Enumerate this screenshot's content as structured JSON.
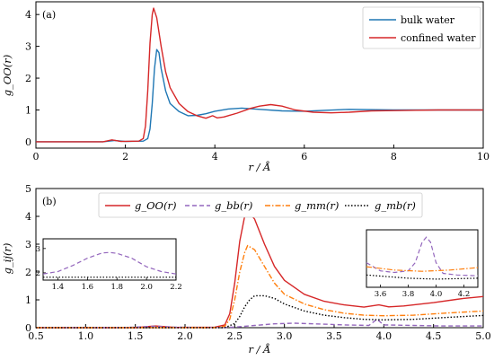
{
  "chart_data": [
    {
      "type": "line",
      "panel_label": "(a)",
      "xlabel": "r / Å",
      "ylabel": "g_OO(r)",
      "xlim": [
        0,
        10
      ],
      "ylim": [
        -0.2,
        4.4
      ],
      "xticks": [
        0,
        2,
        4,
        6,
        8,
        10
      ],
      "yticks": [
        0,
        1,
        2,
        3,
        4
      ],
      "legend_position": "top-right",
      "series": [
        {
          "name": "bulk water",
          "color": "#1f77b4",
          "style": "solid",
          "points": [
            [
              0,
              0
            ],
            [
              1.5,
              0.0
            ],
            [
              1.75,
              0.04
            ],
            [
              2.0,
              0.01
            ],
            [
              2.4,
              0.02
            ],
            [
              2.5,
              0.1
            ],
            [
              2.55,
              0.4
            ],
            [
              2.6,
              1.2
            ],
            [
              2.65,
              2.3
            ],
            [
              2.7,
              2.9
            ],
            [
              2.75,
              2.8
            ],
            [
              2.8,
              2.3
            ],
            [
              2.9,
              1.6
            ],
            [
              3.0,
              1.2
            ],
            [
              3.2,
              0.95
            ],
            [
              3.4,
              0.82
            ],
            [
              3.6,
              0.83
            ],
            [
              3.8,
              0.88
            ],
            [
              4.0,
              0.96
            ],
            [
              4.3,
              1.03
            ],
            [
              4.6,
              1.06
            ],
            [
              5.0,
              1.02
            ],
            [
              5.5,
              0.97
            ],
            [
              6.0,
              0.96
            ],
            [
              6.5,
              0.99
            ],
            [
              7.0,
              1.02
            ],
            [
              8.0,
              1.0
            ],
            [
              9.0,
              1.0
            ],
            [
              10.0,
              1.0
            ]
          ]
        },
        {
          "name": "confined water",
          "color": "#d62728",
          "style": "solid",
          "points": [
            [
              0,
              0
            ],
            [
              1.5,
              0.0
            ],
            [
              1.7,
              0.06
            ],
            [
              1.9,
              0.01
            ],
            [
              2.3,
              0.02
            ],
            [
              2.4,
              0.1
            ],
            [
              2.45,
              0.5
            ],
            [
              2.5,
              1.6
            ],
            [
              2.55,
              3.1
            ],
            [
              2.6,
              4.0
            ],
            [
              2.63,
              4.2
            ],
            [
              2.7,
              3.9
            ],
            [
              2.8,
              3.0
            ],
            [
              2.9,
              2.2
            ],
            [
              3.0,
              1.7
            ],
            [
              3.2,
              1.2
            ],
            [
              3.4,
              0.95
            ],
            [
              3.6,
              0.82
            ],
            [
              3.8,
              0.74
            ],
            [
              3.95,
              0.82
            ],
            [
              4.05,
              0.75
            ],
            [
              4.2,
              0.78
            ],
            [
              4.5,
              0.9
            ],
            [
              4.8,
              1.05
            ],
            [
              5.0,
              1.12
            ],
            [
              5.25,
              1.17
            ],
            [
              5.5,
              1.12
            ],
            [
              5.8,
              1.0
            ],
            [
              6.2,
              0.93
            ],
            [
              6.6,
              0.91
            ],
            [
              7.0,
              0.93
            ],
            [
              7.5,
              0.97
            ],
            [
              8.0,
              0.98
            ],
            [
              8.5,
              0.99
            ],
            [
              9.0,
              1.0
            ],
            [
              9.5,
              1.0
            ],
            [
              10.0,
              1.0
            ]
          ]
        }
      ]
    },
    {
      "type": "line",
      "panel_label": "(b)",
      "xlabel": "r / Å",
      "ylabel": "g_ij(r)",
      "xlim": [
        0.5,
        5.0
      ],
      "ylim": [
        0,
        5
      ],
      "xticks": [
        0.5,
        1.0,
        1.5,
        2.0,
        2.5,
        3.0,
        3.5,
        4.0,
        4.5,
        5.0
      ],
      "yticks": [
        0,
        1,
        2,
        3,
        4,
        5
      ],
      "legend_position": "top-center",
      "series": [
        {
          "name": "g_OO(r)",
          "color": "#d62728",
          "style": "solid",
          "points": [
            [
              0.5,
              0
            ],
            [
              1.5,
              0.0
            ],
            [
              1.7,
              0.06
            ],
            [
              1.9,
              0.01
            ],
            [
              2.3,
              0.02
            ],
            [
              2.4,
              0.1
            ],
            [
              2.45,
              0.5
            ],
            [
              2.5,
              1.6
            ],
            [
              2.55,
              3.1
            ],
            [
              2.6,
              4.0
            ],
            [
              2.63,
              4.2
            ],
            [
              2.7,
              3.9
            ],
            [
              2.8,
              3.0
            ],
            [
              2.9,
              2.2
            ],
            [
              3.0,
              1.7
            ],
            [
              3.2,
              1.2
            ],
            [
              3.4,
              0.95
            ],
            [
              3.6,
              0.82
            ],
            [
              3.8,
              0.74
            ],
            [
              3.95,
              0.82
            ],
            [
              4.05,
              0.75
            ],
            [
              4.2,
              0.78
            ],
            [
              4.5,
              0.9
            ],
            [
              4.8,
              1.05
            ],
            [
              5.0,
              1.12
            ]
          ]
        },
        {
          "name": "g_bb(r)",
          "color": "#9467bd",
          "style": "dashed",
          "points": [
            [
              0.5,
              0
            ],
            [
              1.3,
              0.0
            ],
            [
              1.5,
              0.02
            ],
            [
              1.7,
              0.05
            ],
            [
              1.9,
              0.02
            ],
            [
              2.2,
              0.0
            ],
            [
              2.5,
              0.02
            ],
            [
              2.7,
              0.08
            ],
            [
              2.9,
              0.14
            ],
            [
              3.1,
              0.16
            ],
            [
              3.3,
              0.14
            ],
            [
              3.6,
              0.1
            ],
            [
              3.85,
              0.08
            ],
            [
              3.93,
              0.3
            ],
            [
              4.0,
              0.1
            ],
            [
              4.3,
              0.08
            ],
            [
              4.6,
              0.06
            ],
            [
              5.0,
              0.06
            ]
          ]
        },
        {
          "name": "g_mm(r)",
          "color": "#ff7f0e",
          "style": "dashdot",
          "points": [
            [
              0.5,
              0
            ],
            [
              2.3,
              0.0
            ],
            [
              2.4,
              0.05
            ],
            [
              2.45,
              0.3
            ],
            [
              2.5,
              1.0
            ],
            [
              2.55,
              2.0
            ],
            [
              2.6,
              2.7
            ],
            [
              2.63,
              2.95
            ],
            [
              2.7,
              2.8
            ],
            [
              2.8,
              2.2
            ],
            [
              2.9,
              1.6
            ],
            [
              3.0,
              1.2
            ],
            [
              3.2,
              0.85
            ],
            [
              3.4,
              0.65
            ],
            [
              3.6,
              0.52
            ],
            [
              3.8,
              0.45
            ],
            [
              4.0,
              0.43
            ],
            [
              4.3,
              0.45
            ],
            [
              4.6,
              0.52
            ],
            [
              5.0,
              0.6
            ]
          ]
        },
        {
          "name": "g_mb(r)",
          "color": "#000000",
          "style": "dotted",
          "points": [
            [
              0.5,
              0
            ],
            [
              2.4,
              0.0
            ],
            [
              2.5,
              0.15
            ],
            [
              2.55,
              0.4
            ],
            [
              2.6,
              0.75
            ],
            [
              2.65,
              1.0
            ],
            [
              2.7,
              1.15
            ],
            [
              2.8,
              1.15
            ],
            [
              2.9,
              1.05
            ],
            [
              3.0,
              0.85
            ],
            [
              3.2,
              0.6
            ],
            [
              3.4,
              0.45
            ],
            [
              3.6,
              0.36
            ],
            [
              3.8,
              0.3
            ],
            [
              4.0,
              0.28
            ],
            [
              4.3,
              0.3
            ],
            [
              4.6,
              0.36
            ],
            [
              5.0,
              0.44
            ]
          ]
        }
      ],
      "insets": [
        {
          "xlim": [
            1.3,
            2.2
          ],
          "ylim": [
            1.7,
            3.4
          ],
          "xticks": [
            1.4,
            1.6,
            1.8,
            2.0,
            2.2
          ],
          "yticks": [
            2,
            3
          ],
          "series": [
            {
              "ref": "g_bb(r)",
              "points": [
                [
                  1.3,
                  1.95
                ],
                [
                  1.4,
                  2.05
                ],
                [
                  1.5,
                  2.3
                ],
                [
                  1.6,
                  2.6
                ],
                [
                  1.7,
                  2.82
                ],
                [
                  1.75,
                  2.84
                ],
                [
                  1.8,
                  2.8
                ],
                [
                  1.9,
                  2.6
                ],
                [
                  2.0,
                  2.25
                ],
                [
                  2.1,
                  2.05
                ],
                [
                  2.2,
                  1.95
                ]
              ]
            },
            {
              "ref": "g_mb(r)",
              "points": [
                [
                  1.3,
                  1.82
                ],
                [
                  2.2,
                  1.82
                ]
              ]
            }
          ]
        },
        {
          "xlim": [
            3.5,
            4.3
          ],
          "ylim": [
            1.0,
            8.0
          ],
          "xticks": [
            3.6,
            3.8,
            4.0,
            4.2
          ],
          "yticks": [],
          "series": [
            {
              "ref": "g_bb(r)",
              "points": [
                [
                  3.5,
                  4.0
                ],
                [
                  3.6,
                  3.0
                ],
                [
                  3.7,
                  2.8
                ],
                [
                  3.8,
                  3.0
                ],
                [
                  3.85,
                  4.0
                ],
                [
                  3.9,
                  6.5
                ],
                [
                  3.93,
                  7.1
                ],
                [
                  3.96,
                  6.5
                ],
                [
                  4.0,
                  4.0
                ],
                [
                  4.05,
                  2.7
                ],
                [
                  4.15,
                  2.5
                ],
                [
                  4.3,
                  2.4
                ]
              ]
            },
            {
              "ref": "g_mm(r)",
              "points": [
                [
                  3.5,
                  3.5
                ],
                [
                  3.7,
                  3.1
                ],
                [
                  3.9,
                  2.95
                ],
                [
                  4.1,
                  3.1
                ],
                [
                  4.3,
                  3.4
                ]
              ]
            },
            {
              "ref": "g_mb(r)",
              "points": [
                [
                  3.5,
                  2.5
                ],
                [
                  3.8,
                  2.1
                ],
                [
                  4.0,
                  2.0
                ],
                [
                  4.3,
                  2.1
                ]
              ]
            }
          ]
        }
      ]
    }
  ]
}
